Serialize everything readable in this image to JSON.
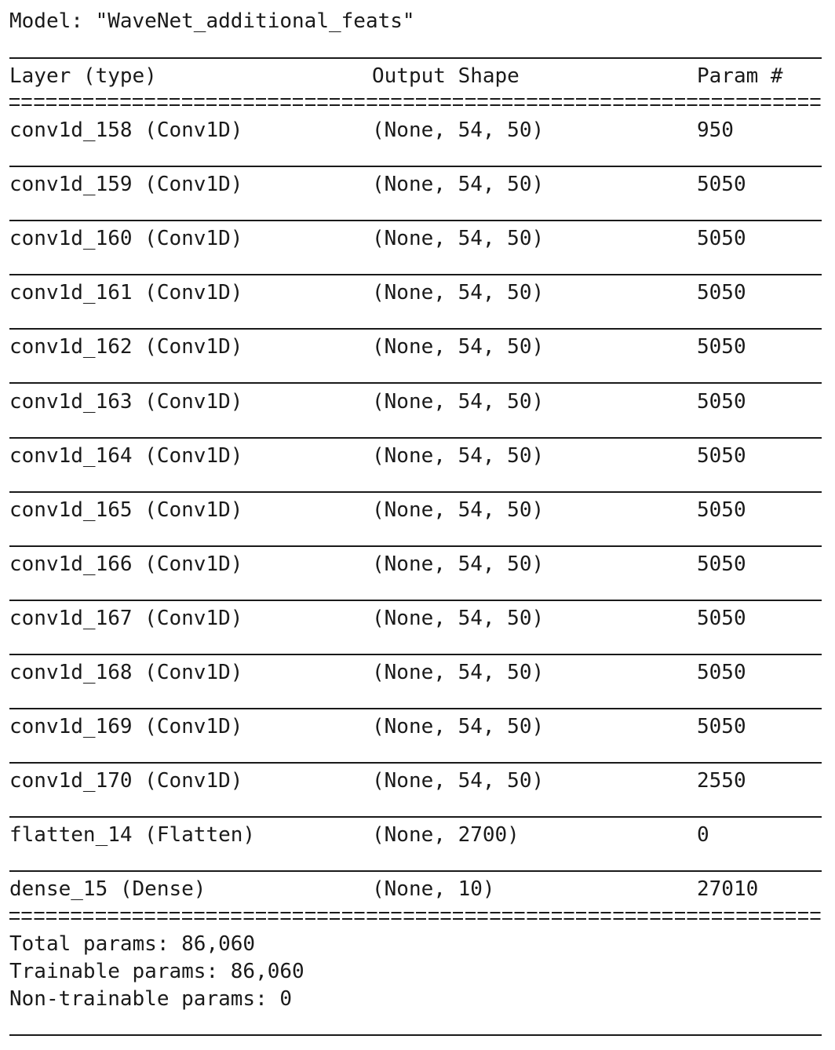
{
  "model_title": "Model: \"WaveNet_additional_feats\"",
  "headers": {
    "layer": "Layer (type)",
    "output_shape": "Output Shape",
    "params": "Param #"
  },
  "rows": [
    {
      "layer": "conv1d_158 (Conv1D)",
      "output_shape": "(None, 54, 50)",
      "params": "950"
    },
    {
      "layer": "conv1d_159 (Conv1D)",
      "output_shape": "(None, 54, 50)",
      "params": "5050"
    },
    {
      "layer": "conv1d_160 (Conv1D)",
      "output_shape": "(None, 54, 50)",
      "params": "5050"
    },
    {
      "layer": "conv1d_161 (Conv1D)",
      "output_shape": "(None, 54, 50)",
      "params": "5050"
    },
    {
      "layer": "conv1d_162 (Conv1D)",
      "output_shape": "(None, 54, 50)",
      "params": "5050"
    },
    {
      "layer": "conv1d_163 (Conv1D)",
      "output_shape": "(None, 54, 50)",
      "params": "5050"
    },
    {
      "layer": "conv1d_164 (Conv1D)",
      "output_shape": "(None, 54, 50)",
      "params": "5050"
    },
    {
      "layer": "conv1d_165 (Conv1D)",
      "output_shape": "(None, 54, 50)",
      "params": "5050"
    },
    {
      "layer": "conv1d_166 (Conv1D)",
      "output_shape": "(None, 54, 50)",
      "params": "5050"
    },
    {
      "layer": "conv1d_167 (Conv1D)",
      "output_shape": "(None, 54, 50)",
      "params": "5050"
    },
    {
      "layer": "conv1d_168 (Conv1D)",
      "output_shape": "(None, 54, 50)",
      "params": "5050"
    },
    {
      "layer": "conv1d_169 (Conv1D)",
      "output_shape": "(None, 54, 50)",
      "params": "5050"
    },
    {
      "layer": "conv1d_170 (Conv1D)",
      "output_shape": "(None, 54, 50)",
      "params": "2550"
    },
    {
      "layer": "flatten_14 (Flatten)",
      "output_shape": "(None, 2700)",
      "params": "0"
    },
    {
      "layer": "dense_15 (Dense)",
      "output_shape": "(None, 10)",
      "params": "27010"
    }
  ],
  "summary": {
    "total": "Total params: 86,060",
    "trainable": "Trainable params: 86,060",
    "non_trainable": "Non-trainable params: 0"
  }
}
